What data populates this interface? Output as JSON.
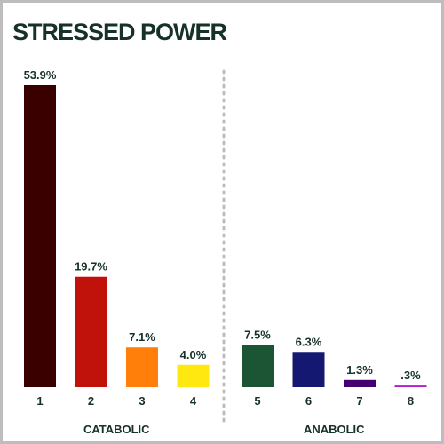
{
  "chart_data": {
    "type": "bar",
    "title": "STRESSED POWER",
    "groups": [
      {
        "label": "CATABOLIC",
        "categories": [
          "1",
          "2",
          "3",
          "4"
        ],
        "values": [
          53.9,
          19.7,
          7.1,
          4.0
        ],
        "value_labels": [
          "53.9%",
          "19.7%",
          "7.1%",
          "4.0%"
        ],
        "colors": [
          "#3a0000",
          "#c0110a",
          "#ff7f0a",
          "#ffe80f"
        ]
      },
      {
        "label": "ANABOLIC",
        "categories": [
          "5",
          "6",
          "7",
          "8"
        ],
        "values": [
          7.5,
          6.3,
          1.3,
          0.3
        ],
        "value_labels": [
          "7.5%",
          "6.3%",
          "1.3%",
          ".3%"
        ],
        "colors": [
          "#1c5533",
          "#141870",
          "#44006e",
          "#b21fc8"
        ]
      }
    ]
  }
}
